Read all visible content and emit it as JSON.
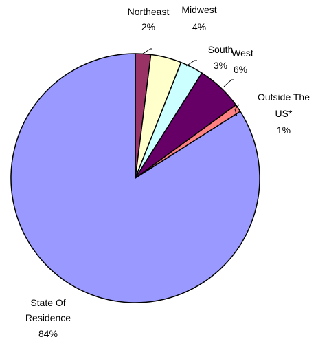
{
  "chart_data": {
    "type": "pie",
    "title": "",
    "start_angle_deg": 0,
    "direction": "clockwise",
    "slices": [
      {
        "label": "Northeast",
        "value": 2,
        "value_label": "2%",
        "color": "#993366"
      },
      {
        "label": "Midwest",
        "value": 4,
        "value_label": "4%",
        "color": "#FFFFCC"
      },
      {
        "label": "South",
        "value": 3,
        "value_label": "3%",
        "color": "#CCFFFF"
      },
      {
        "label": "West",
        "value": 6,
        "value_label": "6%",
        "color": "#660066"
      },
      {
        "label": "Outside The US*",
        "value": 1,
        "value_label": "1%",
        "color": "#FF8080"
      },
      {
        "label": "State Of Residence",
        "value": 84,
        "value_label": "84%",
        "color": "#9999FF"
      }
    ]
  }
}
